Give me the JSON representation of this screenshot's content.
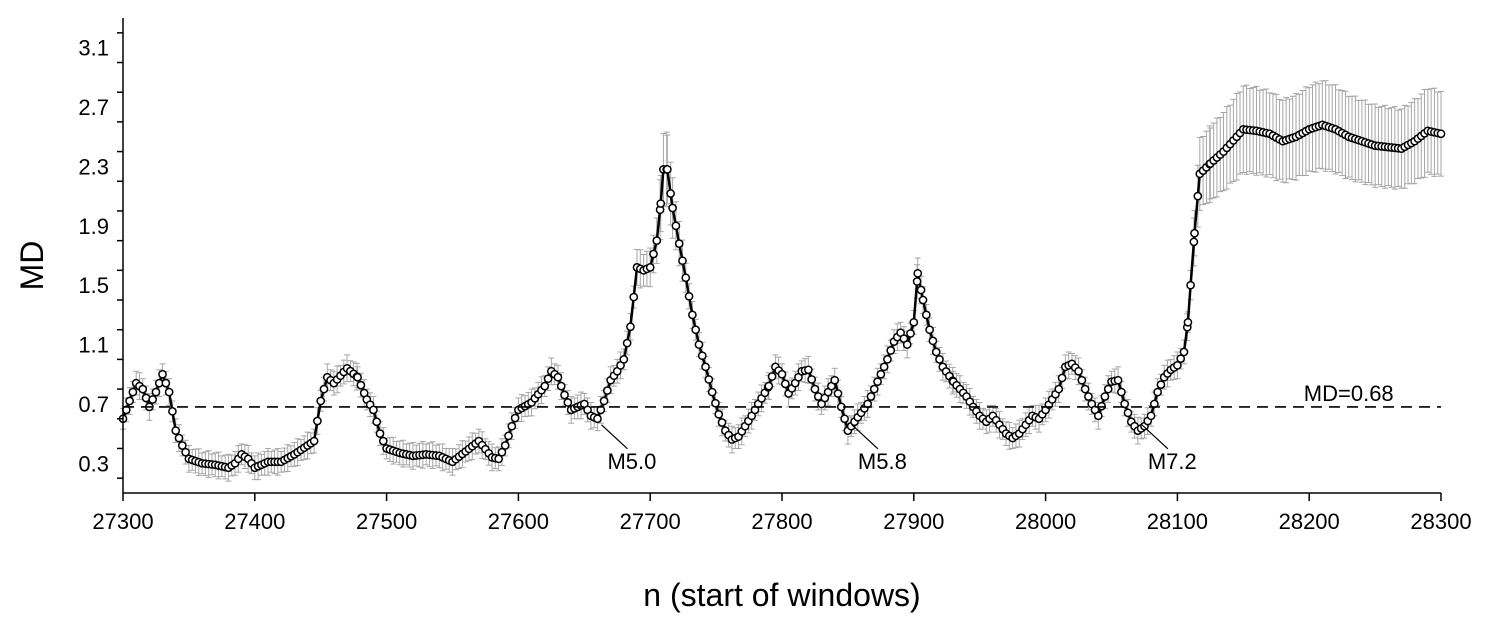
{
  "chart_data": {
    "type": "line",
    "title": "",
    "xlabel": "n (start of windows)",
    "ylabel": "MD",
    "xlim": [
      27300,
      28300
    ],
    "ylim": [
      0.1,
      3.3
    ],
    "x_ticks": [
      "27300",
      "27400",
      "27500",
      "27600",
      "27700",
      "27800",
      "27900",
      "28000",
      "28100",
      "28200",
      "28300"
    ],
    "y_ticks": [
      "0.3",
      "0.7",
      "1.1",
      "1.5",
      "1.9",
      "2.3",
      "2.7",
      "3.1"
    ],
    "grid": false,
    "legend": "none",
    "series": [
      {
        "marker": "open-circle",
        "color": "#000000",
        "error_bar_color": "#a6a6a6",
        "points": [
          [
            27300,
            0.6
          ],
          [
            27305,
            0.72
          ],
          [
            27310,
            0.84
          ],
          [
            27315,
            0.8
          ],
          [
            27320,
            0.68
          ],
          [
            27325,
            0.78
          ],
          [
            27330,
            0.9
          ],
          [
            27335,
            0.78
          ],
          [
            27340,
            0.52
          ],
          [
            27345,
            0.42
          ],
          [
            27350,
            0.33
          ],
          [
            27360,
            0.3
          ],
          [
            27370,
            0.29
          ],
          [
            27380,
            0.27
          ],
          [
            27385,
            0.3
          ],
          [
            27390,
            0.36
          ],
          [
            27395,
            0.33
          ],
          [
            27400,
            0.27
          ],
          [
            27410,
            0.31
          ],
          [
            27420,
            0.31
          ],
          [
            27430,
            0.36
          ],
          [
            27440,
            0.42
          ],
          [
            27445,
            0.45
          ],
          [
            27450,
            0.72
          ],
          [
            27455,
            0.88
          ],
          [
            27460,
            0.84
          ],
          [
            27470,
            0.94
          ],
          [
            27478,
            0.88
          ],
          [
            27485,
            0.73
          ],
          [
            27490,
            0.66
          ],
          [
            27495,
            0.5
          ],
          [
            27500,
            0.4
          ],
          [
            27510,
            0.37
          ],
          [
            27520,
            0.35
          ],
          [
            27530,
            0.36
          ],
          [
            27540,
            0.35
          ],
          [
            27550,
            0.31
          ],
          [
            27560,
            0.38
          ],
          [
            27570,
            0.45
          ],
          [
            27580,
            0.34
          ],
          [
            27585,
            0.33
          ],
          [
            27590,
            0.42
          ],
          [
            27595,
            0.55
          ],
          [
            27600,
            0.66
          ],
          [
            27610,
            0.71
          ],
          [
            27620,
            0.82
          ],
          [
            27625,
            0.92
          ],
          [
            27630,
            0.88
          ],
          [
            27635,
            0.76
          ],
          [
            27640,
            0.66
          ],
          [
            27650,
            0.7
          ],
          [
            27655,
            0.62
          ],
          [
            27660,
            0.6
          ],
          [
            27665,
            0.72
          ],
          [
            27670,
            0.86
          ],
          [
            27675,
            0.92
          ],
          [
            27680,
            1.0
          ],
          [
            27685,
            1.22
          ],
          [
            27690,
            1.62
          ],
          [
            27695,
            1.6
          ],
          [
            27700,
            1.62
          ],
          [
            27705,
            1.8
          ],
          [
            27708,
            2.05
          ],
          [
            27710,
            2.28
          ],
          [
            27713,
            2.28
          ],
          [
            27717,
            2.02
          ],
          [
            27722,
            1.78
          ],
          [
            27727,
            1.55
          ],
          [
            27732,
            1.3
          ],
          [
            27737,
            1.1
          ],
          [
            27742,
            0.95
          ],
          [
            27747,
            0.78
          ],
          [
            27752,
            0.63
          ],
          [
            27757,
            0.52
          ],
          [
            27762,
            0.46
          ],
          [
            27767,
            0.48
          ],
          [
            27772,
            0.55
          ],
          [
            27777,
            0.62
          ],
          [
            27782,
            0.7
          ],
          [
            27790,
            0.82
          ],
          [
            27795,
            0.95
          ],
          [
            27800,
            0.9
          ],
          [
            27805,
            0.77
          ],
          [
            27810,
            0.84
          ],
          [
            27815,
            0.92
          ],
          [
            27820,
            0.93
          ],
          [
            27825,
            0.8
          ],
          [
            27830,
            0.7
          ],
          [
            27835,
            0.78
          ],
          [
            27840,
            0.86
          ],
          [
            27845,
            0.68
          ],
          [
            27850,
            0.52
          ],
          [
            27855,
            0.58
          ],
          [
            27860,
            0.64
          ],
          [
            27865,
            0.7
          ],
          [
            27870,
            0.8
          ],
          [
            27875,
            0.9
          ],
          [
            27880,
            1.0
          ],
          [
            27885,
            1.12
          ],
          [
            27890,
            1.18
          ],
          [
            27895,
            1.1
          ],
          [
            27900,
            1.25
          ],
          [
            27903,
            1.58
          ],
          [
            27907,
            1.4
          ],
          [
            27912,
            1.2
          ],
          [
            27917,
            1.05
          ],
          [
            27922,
            0.95
          ],
          [
            27930,
            0.85
          ],
          [
            27940,
            0.75
          ],
          [
            27945,
            0.68
          ],
          [
            27950,
            0.62
          ],
          [
            27955,
            0.58
          ],
          [
            27960,
            0.62
          ],
          [
            27965,
            0.56
          ],
          [
            27970,
            0.5
          ],
          [
            27975,
            0.47
          ],
          [
            27980,
            0.5
          ],
          [
            27985,
            0.56
          ],
          [
            27990,
            0.62
          ],
          [
            27995,
            0.6
          ],
          [
            28000,
            0.66
          ],
          [
            28010,
            0.8
          ],
          [
            28015,
            0.95
          ],
          [
            28020,
            0.97
          ],
          [
            28025,
            0.92
          ],
          [
            28030,
            0.8
          ],
          [
            28035,
            0.7
          ],
          [
            28040,
            0.62
          ],
          [
            28045,
            0.75
          ],
          [
            28050,
            0.85
          ],
          [
            28055,
            0.86
          ],
          [
            28060,
            0.7
          ],
          [
            28065,
            0.58
          ],
          [
            28070,
            0.52
          ],
          [
            28075,
            0.55
          ],
          [
            28080,
            0.62
          ],
          [
            28085,
            0.78
          ],
          [
            28090,
            0.88
          ],
          [
            28095,
            0.93
          ],
          [
            28100,
            0.96
          ],
          [
            28105,
            1.05
          ],
          [
            28108,
            1.25
          ],
          [
            28110,
            1.5
          ],
          [
            28113,
            1.85
          ],
          [
            28117,
            2.25
          ],
          [
            28125,
            2.32
          ],
          [
            28135,
            2.4
          ],
          [
            28145,
            2.5
          ],
          [
            28150,
            2.55
          ],
          [
            28160,
            2.54
          ],
          [
            28170,
            2.52
          ],
          [
            28180,
            2.47
          ],
          [
            28190,
            2.5
          ],
          [
            28200,
            2.55
          ],
          [
            28210,
            2.58
          ],
          [
            28220,
            2.55
          ],
          [
            28230,
            2.5
          ],
          [
            28240,
            2.47
          ],
          [
            28250,
            2.44
          ],
          [
            28260,
            2.43
          ],
          [
            28270,
            2.42
          ],
          [
            28280,
            2.47
          ],
          [
            28290,
            2.54
          ],
          [
            28300,
            2.52
          ]
        ]
      }
    ],
    "reference_line": {
      "y": 0.68,
      "style": "dashed",
      "label": "MD=0.68"
    },
    "annotations": [
      {
        "text": "M5.0",
        "x": 27660
      },
      {
        "text": "M5.8",
        "x": 27850
      },
      {
        "text": "M7.2",
        "x": 28070
      }
    ]
  }
}
